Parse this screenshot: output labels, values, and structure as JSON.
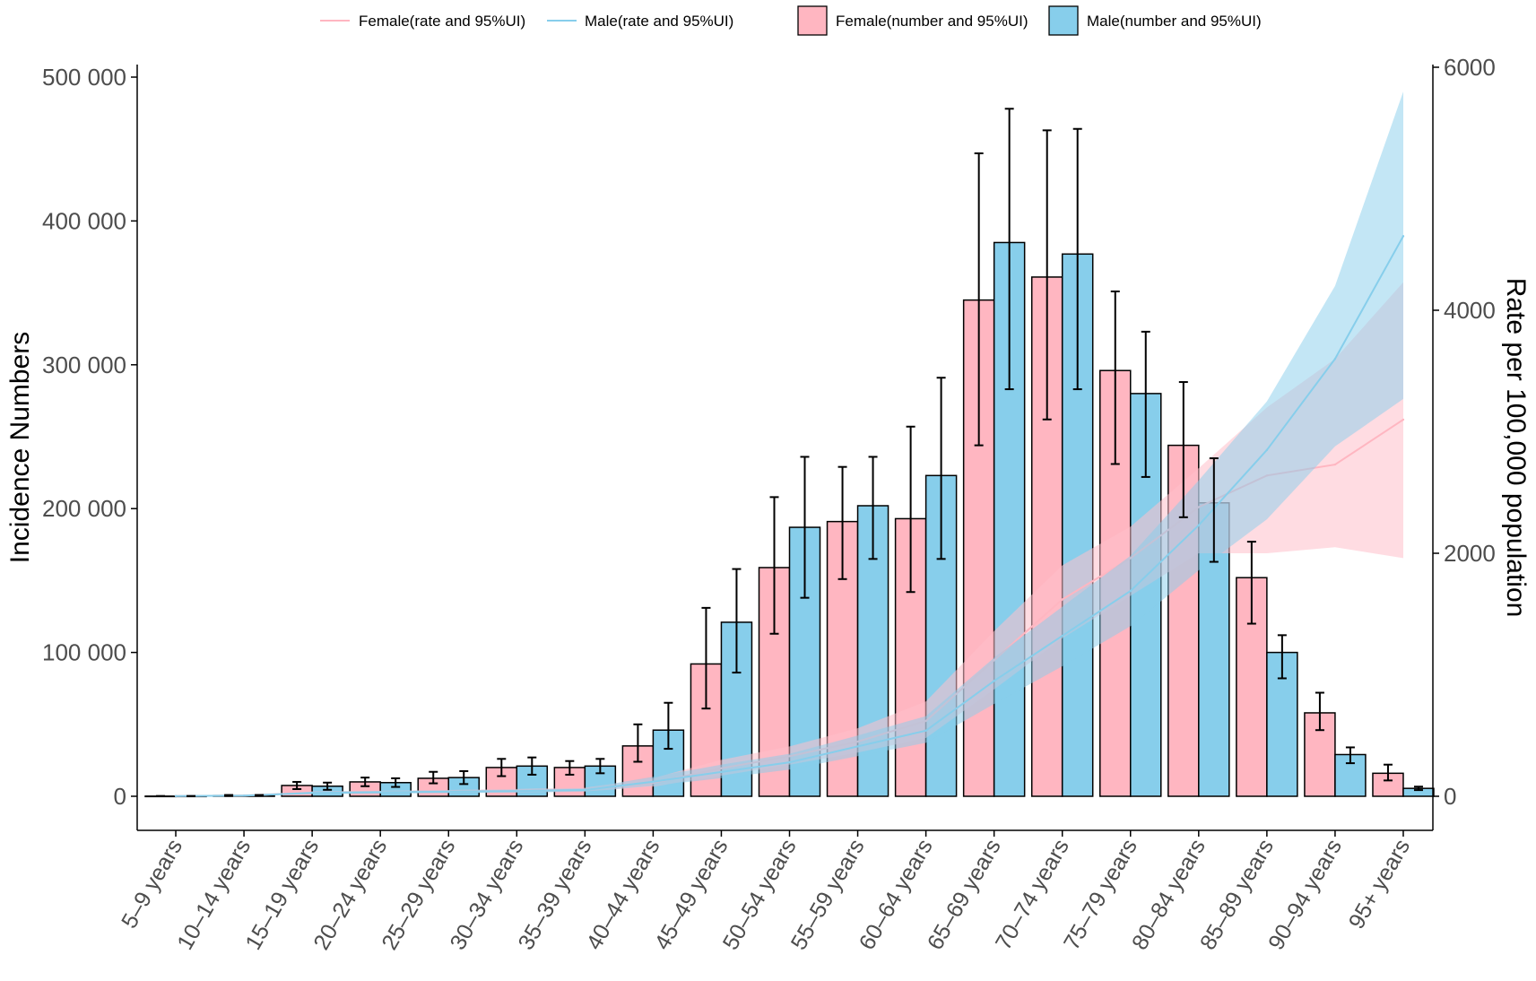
{
  "chart_data": {
    "type": "bar",
    "title": "",
    "xlabel": "",
    "ylabel": "Incidence Numbers",
    "y2label": "Rate per 100,000 population",
    "ylim": [
      0,
      500000
    ],
    "y2lim": [
      0,
      6000
    ],
    "yticks": [
      0,
      100000,
      200000,
      300000,
      400000,
      500000
    ],
    "ytick_labels": [
      "0",
      "100 000",
      "200 000",
      "300 000",
      "400 000",
      "500 000"
    ],
    "y2ticks": [
      0,
      2000,
      4000,
      6000
    ],
    "y2tick_labels": [
      "0",
      "2000",
      "4000",
      "6000"
    ],
    "categories": [
      "5–9 years",
      "10–14 years",
      "15–19 years",
      "20–24 years",
      "25–29 years",
      "30–34 years",
      "35–39 years",
      "40–44 years",
      "45–49 years",
      "50–54 years",
      "55–59 years",
      "60–64 years",
      "65–69 years",
      "70–74 years",
      "75–79 years",
      "80–84 years",
      "85–89 years",
      "90–94 years",
      "95+ years"
    ],
    "legend": {
      "position": "top",
      "entries": [
        "Female(rate and 95%UI)",
        "Male(rate and 95%UI)",
        "Female(number and 95%UI)",
        "Male(number and 95%UI)"
      ]
    },
    "colors": {
      "female_bar": "#ffb6c1",
      "male_bar": "#87ceeb",
      "female_line": "#ffb6c1",
      "male_line": "#87ceeb",
      "female_ribbon": "#ffc0cb",
      "male_ribbon": "#87ceeb",
      "bar_border": "#000000",
      "error_bar": "#000000"
    },
    "bar_series": [
      {
        "name": "Female(number and 95%UI)",
        "values": [
          100,
          500,
          7500,
          10000,
          12500,
          20000,
          20000,
          35000,
          92000,
          159000,
          191000,
          193000,
          345000,
          361000,
          296000,
          244000,
          152000,
          58000,
          16000
        ],
        "lower": [
          50,
          250,
          5000,
          7000,
          9000,
          14000,
          15000,
          24000,
          61000,
          113000,
          151000,
          142000,
          244000,
          262000,
          231000,
          194000,
          120000,
          46000,
          11000
        ],
        "upper": [
          200,
          900,
          10000,
          13000,
          17000,
          26000,
          24500,
          50000,
          131000,
          208000,
          229000,
          257000,
          447000,
          463000,
          351000,
          288000,
          177000,
          72000,
          22000
        ]
      },
      {
        "name": "Male(number and 95%UI)",
        "values": [
          100,
          500,
          7000,
          9500,
          13000,
          21000,
          21000,
          46000,
          121000,
          187000,
          202000,
          223000,
          385000,
          377000,
          280000,
          204000,
          100000,
          29000,
          5500
        ],
        "lower": [
          50,
          250,
          4500,
          6500,
          8500,
          15000,
          16000,
          33000,
          86000,
          138000,
          165000,
          165000,
          283000,
          283000,
          222000,
          163000,
          82000,
          23000,
          4300
        ],
        "upper": [
          200,
          900,
          9500,
          12500,
          17500,
          27000,
          26000,
          65000,
          158000,
          236000,
          236000,
          291000,
          478000,
          464000,
          323000,
          235000,
          112000,
          34000,
          6700
        ]
      }
    ],
    "line_series": [
      {
        "name": "Female(rate and 95%UI)",
        "values": [
          2,
          5,
          30,
          35,
          40,
          45,
          55,
          110,
          230,
          330,
          450,
          620,
          1120,
          1620,
          1960,
          2380,
          2640,
          2730,
          3100
        ],
        "lower": [
          1,
          3,
          20,
          25,
          28,
          32,
          40,
          80,
          170,
          260,
          360,
          480,
          880,
          1300,
          1650,
          2000,
          2000,
          2050,
          1960
        ],
        "upper": [
          4,
          8,
          40,
          45,
          52,
          60,
          70,
          150,
          300,
          410,
          560,
          780,
          1360,
          1900,
          2220,
          2700,
          3200,
          3600,
          4230
        ]
      },
      {
        "name": "Male(rate and 95%UI)",
        "values": [
          2,
          5,
          28,
          33,
          38,
          43,
          52,
          120,
          200,
          280,
          410,
          540,
          950,
          1320,
          1690,
          2230,
          2850,
          3600,
          4610
        ],
        "lower": [
          1,
          3,
          18,
          22,
          26,
          30,
          38,
          85,
          150,
          220,
          330,
          440,
          760,
          1070,
          1400,
          1860,
          2280,
          2880,
          3270
        ],
        "upper": [
          4,
          8,
          38,
          44,
          50,
          56,
          66,
          160,
          260,
          350,
          500,
          660,
          1140,
          1560,
          1980,
          2600,
          3250,
          4200,
          5800
        ]
      }
    ]
  }
}
